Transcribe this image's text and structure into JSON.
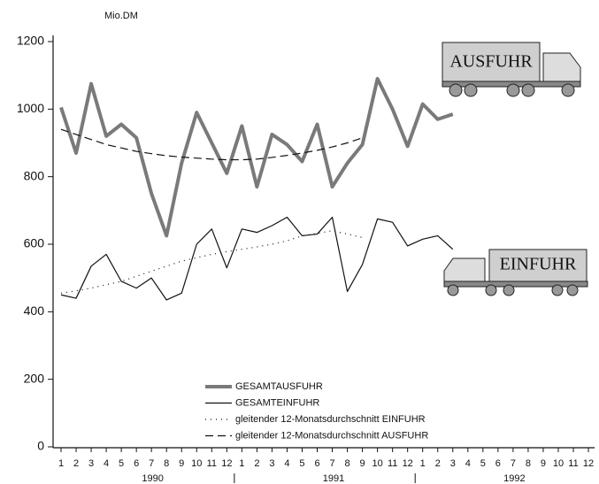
{
  "chart_data": {
    "type": "line",
    "y_unit": "Mio.DM",
    "categories": [
      "1",
      "2",
      "3",
      "4",
      "5",
      "6",
      "7",
      "8",
      "9",
      "10",
      "11",
      "12",
      "1",
      "2",
      "3",
      "4",
      "5",
      "6",
      "7",
      "8",
      "9",
      "10",
      "11",
      "12",
      "1",
      "2",
      "3",
      "4",
      "5",
      "6",
      "7",
      "8",
      "9",
      "10",
      "11",
      "12"
    ],
    "years": [
      "1990",
      "1991",
      "1992"
    ],
    "series": [
      {
        "name": "GESAMTAUSFUHR",
        "color": "#7a7a7a",
        "width": 4,
        "dash": "none",
        "values": [
          1005,
          870,
          1075,
          920,
          955,
          915,
          750,
          625,
          840,
          990,
          900,
          810,
          950,
          770,
          925,
          895,
          845,
          955,
          770,
          840,
          895,
          1090,
          1000,
          890,
          1015,
          970,
          985,
          null,
          null,
          null,
          null,
          null,
          null,
          null,
          null,
          null
        ]
      },
      {
        "name": "GESAMTEINFUHR",
        "color": "#111111",
        "width": 1.2,
        "dash": "none",
        "values": [
          450,
          440,
          535,
          570,
          490,
          470,
          500,
          435,
          455,
          600,
          645,
          530,
          645,
          635,
          655,
          680,
          625,
          630,
          680,
          460,
          540,
          675,
          665,
          595,
          615,
          625,
          585,
          null,
          null,
          null,
          null,
          null,
          null,
          null,
          null,
          null
        ]
      },
      {
        "name": "gleitender 12-Monatsdurchschnitt EINFUHR",
        "color": "#111111",
        "width": 1.2,
        "dash": "1,5",
        "values": [
          455,
          462,
          470,
          480,
          490,
          505,
          520,
          535,
          550,
          560,
          570,
          578,
          585,
          592,
          600,
          610,
          625,
          632,
          640,
          630,
          620,
          null,
          null,
          null,
          null,
          null,
          null,
          null,
          null,
          null,
          null,
          null,
          null,
          null,
          null,
          null
        ]
      },
      {
        "name": "gleitender 12-Monatsdurchschnitt AUSFUHR",
        "color": "#111111",
        "width": 1.2,
        "dash": "9,5",
        "values": [
          940,
          925,
          910,
          895,
          885,
          875,
          868,
          862,
          858,
          855,
          852,
          850,
          850,
          852,
          857,
          863,
          870,
          878,
          888,
          900,
          915,
          null,
          null,
          null,
          null,
          null,
          null,
          null,
          null,
          null,
          null,
          null,
          null,
          null,
          null,
          null
        ]
      }
    ],
    "annotations": [
      "AUSFUHR",
      "EINFUHR"
    ],
    "ylim": [
      0,
      1200
    ],
    "yticks": [
      0,
      200,
      400,
      600,
      800,
      1000,
      1200
    ],
    "grid": false
  }
}
